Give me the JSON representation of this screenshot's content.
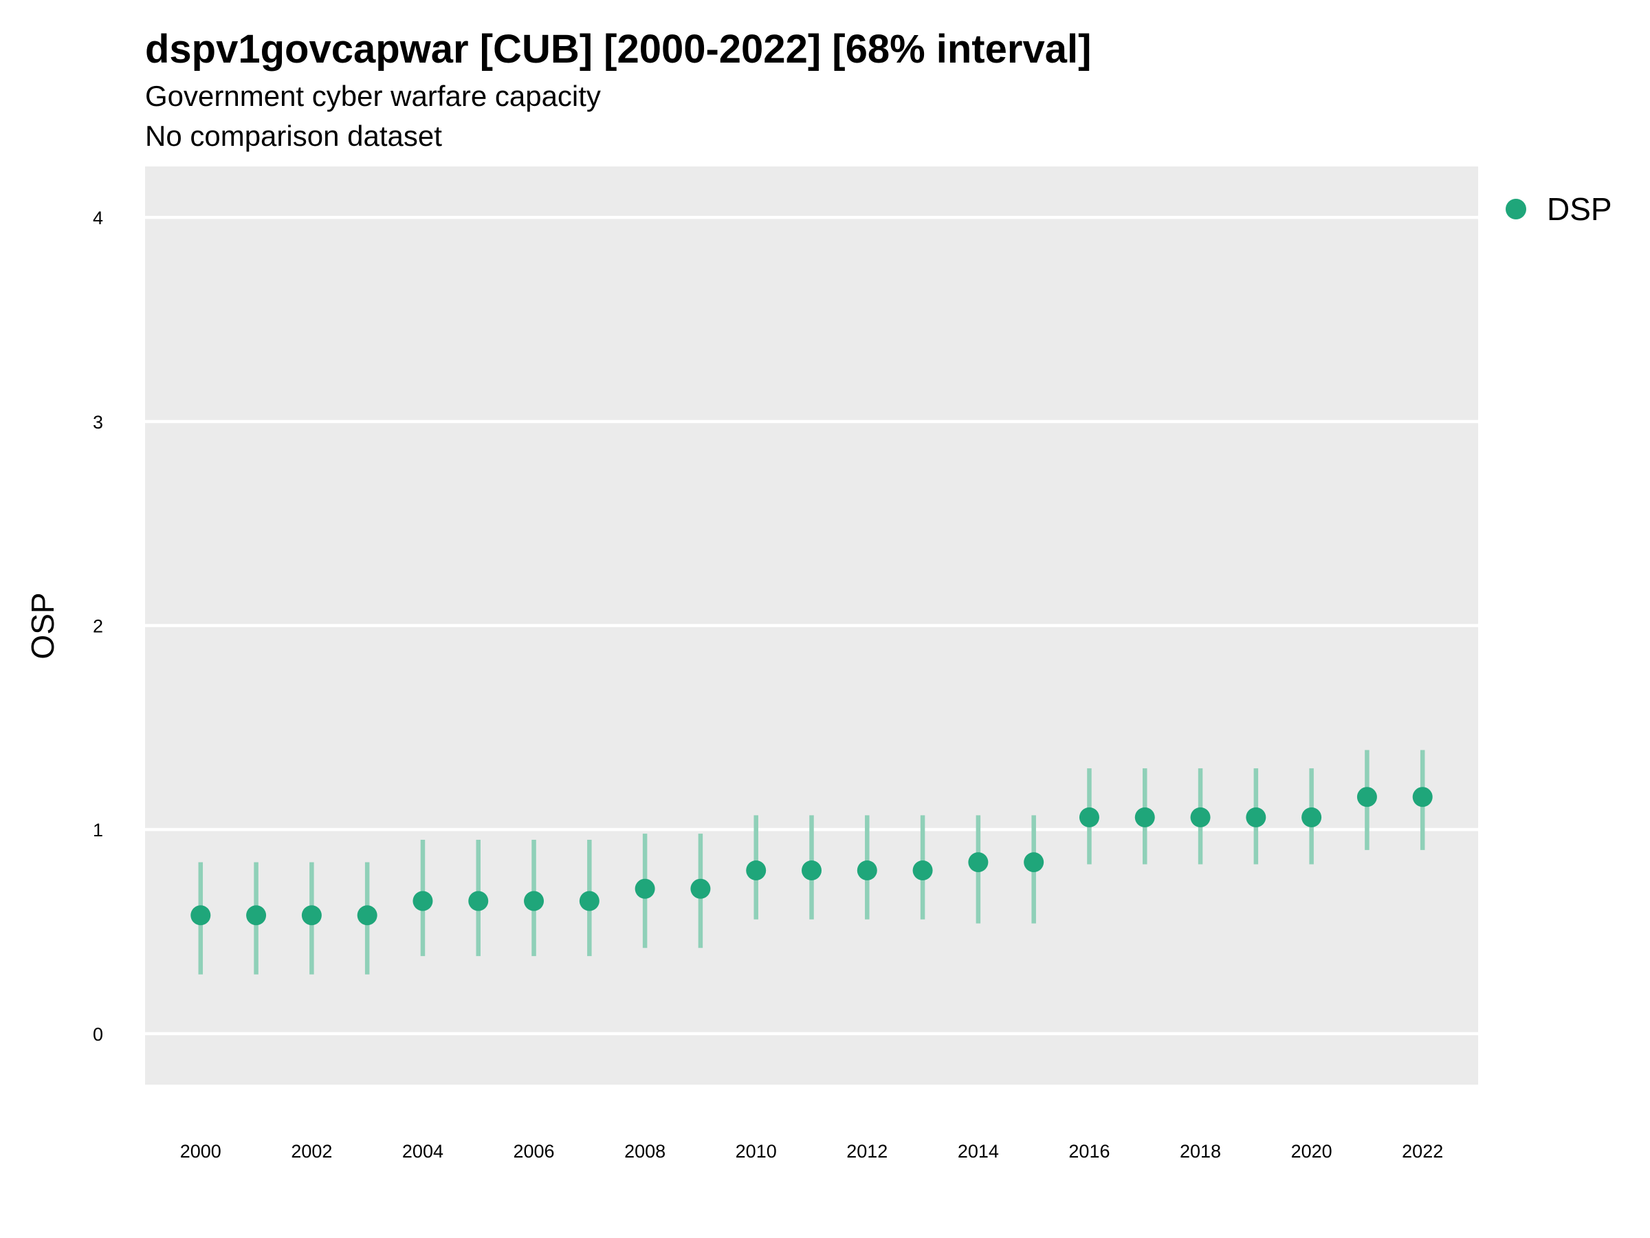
{
  "chart_data": {
    "type": "scatter",
    "title": "dspv1govcapwar [CUB] [2000-2022] [68% interval]",
    "subtitle": "Government cyber warfare capacity",
    "subtitle2": "No comparison dataset",
    "xlabel": "",
    "ylabel": "OSP",
    "xlim": [
      1999,
      2023
    ],
    "ylim": [
      -0.25,
      4.25
    ],
    "x_ticks": [
      "2000",
      "2002",
      "2004",
      "2006",
      "2008",
      "2010",
      "2012",
      "2014",
      "2016",
      "2018",
      "2020",
      "2022"
    ],
    "y_ticks": [
      "0",
      "1",
      "2",
      "3",
      "4"
    ],
    "grid": true,
    "legend_position": "top-right",
    "colors": {
      "point": "#1fa67a",
      "interval": "#8fd0b8",
      "panel": "#ebebeb",
      "grid": "#ffffff"
    },
    "series": [
      {
        "name": "DSP",
        "x": [
          2000,
          2001,
          2002,
          2003,
          2004,
          2005,
          2006,
          2007,
          2008,
          2009,
          2010,
          2011,
          2012,
          2013,
          2014,
          2015,
          2016,
          2017,
          2018,
          2019,
          2020,
          2021,
          2022
        ],
        "y": [
          0.58,
          0.58,
          0.58,
          0.58,
          0.65,
          0.65,
          0.65,
          0.65,
          0.71,
          0.71,
          0.8,
          0.8,
          0.8,
          0.8,
          0.84,
          0.84,
          1.06,
          1.06,
          1.06,
          1.06,
          1.06,
          1.16,
          1.16
        ],
        "lower": [
          0.29,
          0.29,
          0.29,
          0.29,
          0.38,
          0.38,
          0.38,
          0.38,
          0.42,
          0.42,
          0.56,
          0.56,
          0.56,
          0.56,
          0.54,
          0.54,
          0.83,
          0.83,
          0.83,
          0.83,
          0.83,
          0.9,
          0.9
        ],
        "upper": [
          0.84,
          0.84,
          0.84,
          0.84,
          0.95,
          0.95,
          0.95,
          0.95,
          0.98,
          0.98,
          1.07,
          1.07,
          1.07,
          1.07,
          1.07,
          1.07,
          1.3,
          1.3,
          1.3,
          1.3,
          1.3,
          1.39,
          1.39
        ]
      }
    ]
  }
}
